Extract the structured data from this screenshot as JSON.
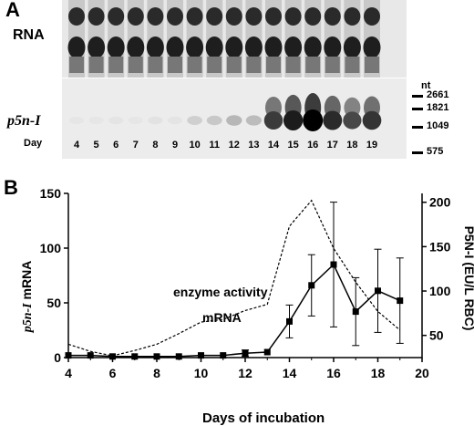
{
  "panel_a": {
    "letter": "A",
    "rna_label": "RNA",
    "gene_label": "p5n-I",
    "day_label": "Day",
    "days": [
      "4",
      "5",
      "6",
      "7",
      "8",
      "9",
      "10",
      "11",
      "12",
      "13",
      "14",
      "15",
      "16",
      "17",
      "18",
      "19"
    ],
    "size_unit": "nt",
    "markers": [
      "2661",
      "1821",
      "1049",
      "575"
    ],
    "band_intensity": [
      0.02,
      0.02,
      0.03,
      0.02,
      0.04,
      0.03,
      0.12,
      0.15,
      0.22,
      0.2,
      0.75,
      0.88,
      1.0,
      0.82,
      0.7,
      0.78
    ]
  },
  "chart_data": {
    "type": "line",
    "panel_letter": "B",
    "xlabel": "Days of incubation",
    "ylabel_left_gene": "p5n-I",
    "ylabel_left_suffix": " mRNA",
    "ylabel_right": "P5N-I  (EU/L RBC)",
    "xlim": [
      4,
      20
    ],
    "xticks": [
      "4",
      "6",
      "8",
      "10",
      "12",
      "14",
      "16",
      "18",
      "20"
    ],
    "ylim_left": [
      0,
      150
    ],
    "yticks_left": [
      "0",
      "50",
      "100",
      "150"
    ],
    "ylim_right": [
      25,
      210
    ],
    "yticks_right": [
      "50",
      "100",
      "150",
      "200"
    ],
    "series": [
      {
        "name": "mRNA",
        "axis": "left",
        "style": "solid-square",
        "x": [
          4,
          5,
          6,
          7,
          8,
          9,
          10,
          11,
          12,
          13,
          14,
          15,
          16,
          17,
          18,
          19
        ],
        "y": [
          2,
          2,
          1,
          1,
          1,
          1,
          2,
          2,
          4,
          5,
          33,
          66,
          85,
          42,
          61,
          52
        ],
        "err": [
          0,
          0,
          0,
          0,
          0,
          0,
          0,
          0,
          3,
          0,
          15,
          28,
          57,
          31,
          38,
          39
        ]
      },
      {
        "name": "enzyme activity",
        "axis": "right",
        "style": "dashed",
        "x": [
          4,
          5,
          6,
          7,
          8,
          9,
          10,
          11,
          12,
          13,
          14,
          15,
          16,
          17,
          18,
          19
        ],
        "y": [
          40,
          32,
          27,
          33,
          40,
          52,
          65,
          68,
          78,
          85,
          173,
          202,
          148,
          110,
          77,
          56
        ]
      }
    ]
  }
}
